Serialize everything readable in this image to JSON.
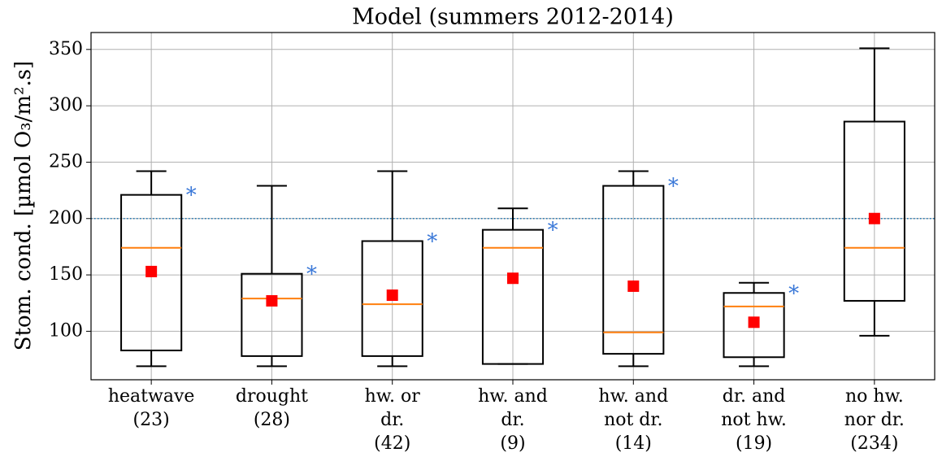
{
  "chart_data": {
    "type": "box",
    "title": "Model (summers 2012-2014)",
    "y_label": "Stom. cond. [µmol O₃/m².s]",
    "categories": [
      [
        "heatwave",
        "(23)"
      ],
      [
        "drought",
        "(28)"
      ],
      [
        "hw. or",
        "dr.",
        "(42)"
      ],
      [
        "hw. and",
        "dr.",
        "(9)"
      ],
      [
        "hw. and",
        "not dr.",
        "(14)"
      ],
      [
        "dr. and",
        "not hw.",
        "(19)"
      ],
      [
        "no hw.",
        "nor dr.",
        "(234)"
      ]
    ],
    "boxes": [
      {
        "whislo": 69,
        "q1": 83,
        "med": 174,
        "q3": 221,
        "whishi": 242,
        "mean": 153
      },
      {
        "whislo": 69,
        "q1": 78,
        "med": 129,
        "q3": 151,
        "whishi": 229,
        "mean": 127
      },
      {
        "whislo": 69,
        "q1": 78,
        "med": 124,
        "q3": 180,
        "whishi": 242,
        "mean": 132
      },
      {
        "whislo": 71,
        "q1": 71,
        "med": 174,
        "q3": 190,
        "whishi": 209,
        "mean": 147
      },
      {
        "whislo": 69,
        "q1": 80,
        "med": 99,
        "q3": 229,
        "whishi": 242,
        "mean": 140
      },
      {
        "whislo": 69,
        "q1": 77,
        "med": 122,
        "q3": 134,
        "whishi": 143,
        "mean": 108
      },
      {
        "whislo": 96,
        "q1": 127,
        "med": 174,
        "q3": 286,
        "whishi": 351,
        "mean": 200
      }
    ],
    "significance": [
      "*",
      "*",
      "*",
      "*",
      "*",
      "*",
      null
    ],
    "reference_line": 200,
    "box_color": "#000000",
    "median_color": "#ff7f0e",
    "mean_color": "#ff0000",
    "reference_color": "#1f77b4",
    "significance_color": "#3a78d8",
    "ylim": [
      57,
      365
    ],
    "yticks": [
      100,
      150,
      200,
      250,
      300,
      350
    ],
    "grid": true
  }
}
